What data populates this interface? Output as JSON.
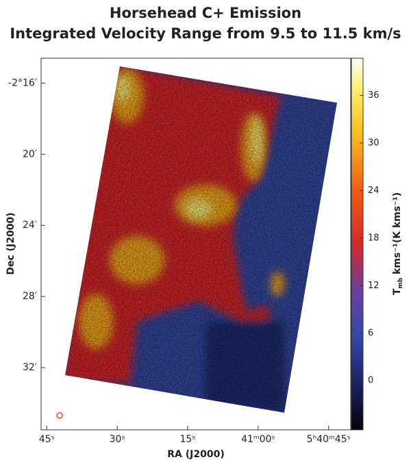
{
  "chart_data": {
    "type": "image",
    "title": [
      "Horsehead C+ Emission",
      "Integrated Velocity Range from 9.5 to 11.5 km/s"
    ],
    "x_label": "RA (J2000)",
    "y_label": "Dec (J2000)",
    "xlim": [
      106.2,
      40.3
    ],
    "xticks": [
      {
        "value": 105,
        "label": "45ˢ"
      },
      {
        "value": 90,
        "label": "30ˢ"
      },
      {
        "value": 75,
        "label": "15ˢ"
      },
      {
        "value": 60,
        "label": "41ᵐ00ˢ"
      },
      {
        "value": 45,
        "label": "5ʰ40ᵐ45ˢ"
      }
    ],
    "ylim": [
      -155.5,
      -134.6
    ],
    "yticks": [
      {
        "value": -136,
        "label": "-2°16′"
      },
      {
        "value": -140,
        "label": "20′"
      },
      {
        "value": -144,
        "label": "24′"
      },
      {
        "value": -148,
        "label": "28′"
      },
      {
        "value": -152,
        "label": "32′"
      }
    ],
    "colorbar": {
      "label": {
        "main": "T",
        "sub": "mb",
        "rest": " kms⁻¹(K kms⁻¹)"
      },
      "lim": [
        -6.2,
        40.7
      ],
      "ticks": [
        0,
        6,
        12,
        18,
        24,
        30,
        36
      ]
    }
  }
}
